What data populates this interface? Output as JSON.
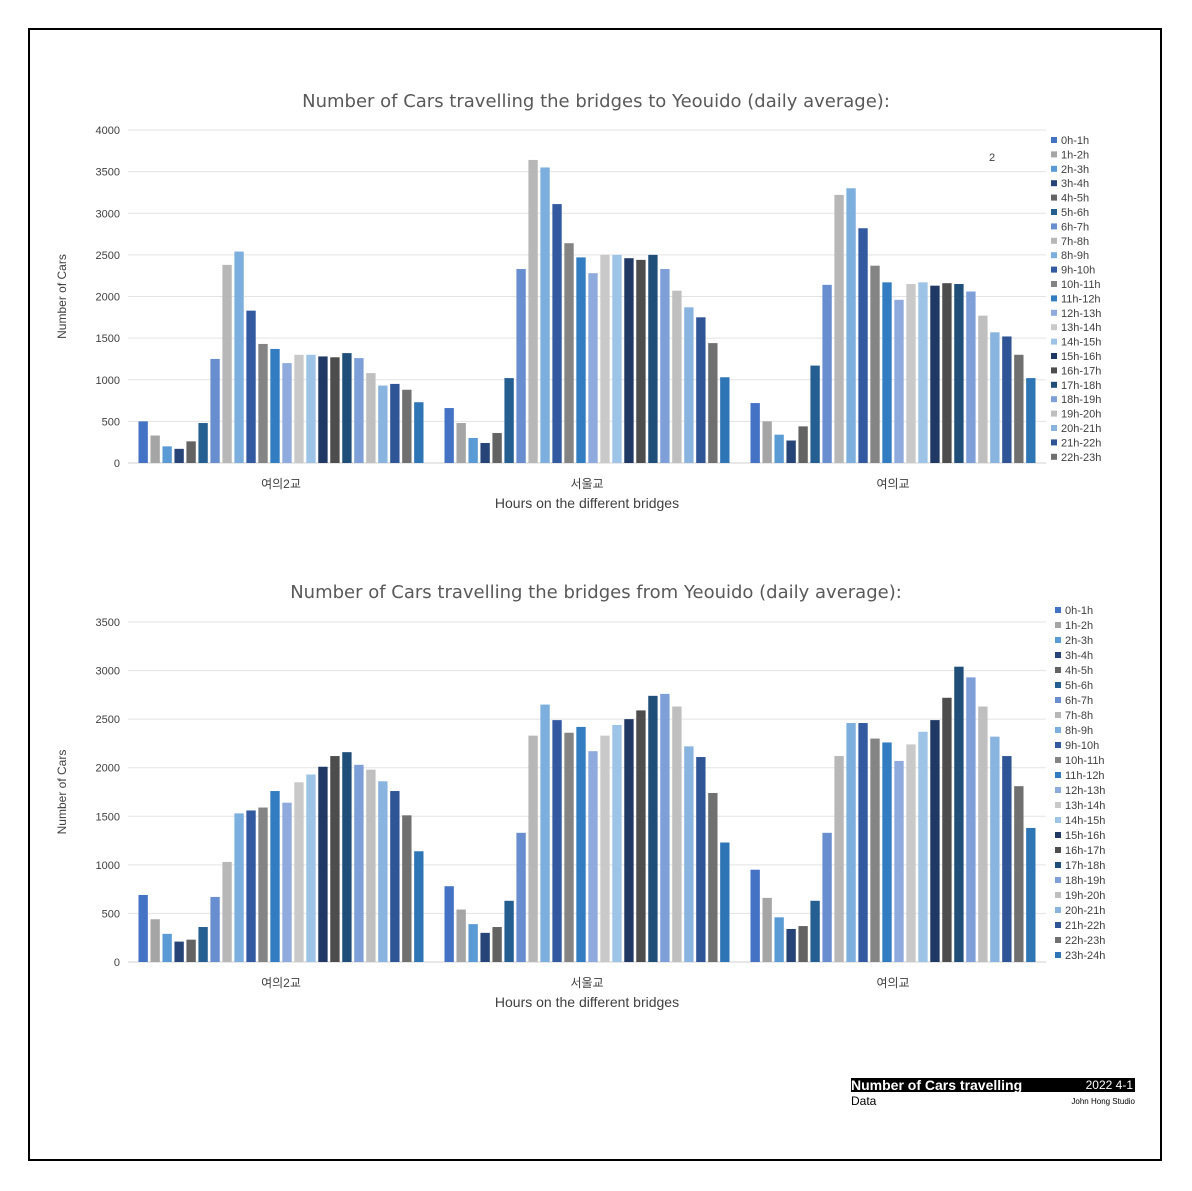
{
  "chart_data": [
    {
      "type": "bar",
      "title": "Number of Cars travelling the bridges to Yeouido (daily average):",
      "xlabel": "Hours on the different bridges",
      "ylabel": "Number of Cars",
      "ylim": [
        0,
        4000
      ],
      "yticks": [
        0,
        500,
        1000,
        1500,
        2000,
        2500,
        3000,
        3500,
        4000
      ],
      "grid": true,
      "legend": "right",
      "annotation": "2",
      "categories": [
        "여의2교",
        "서울교",
        "여의교"
      ],
      "series": [
        {
          "name": "0h-1h",
          "values": [
            500,
            660,
            720
          ]
        },
        {
          "name": "1h-2h",
          "values": [
            330,
            480,
            500
          ]
        },
        {
          "name": "2h-3h",
          "values": [
            200,
            300,
            340
          ]
        },
        {
          "name": "3h-4h",
          "values": [
            170,
            240,
            270
          ]
        },
        {
          "name": "4h-5h",
          "values": [
            260,
            360,
            440
          ]
        },
        {
          "name": "5h-6h",
          "values": [
            480,
            1020,
            1170
          ]
        },
        {
          "name": "6h-7h",
          "values": [
            1250,
            2330,
            2140
          ]
        },
        {
          "name": "7h-8h",
          "values": [
            2380,
            3640,
            3220
          ]
        },
        {
          "name": "8h-9h",
          "values": [
            2540,
            3550,
            3300
          ]
        },
        {
          "name": "9h-10h",
          "values": [
            1830,
            3110,
            2820
          ]
        },
        {
          "name": "10h-11h",
          "values": [
            1430,
            2640,
            2370
          ]
        },
        {
          "name": "11h-12h",
          "values": [
            1370,
            2470,
            2170
          ]
        },
        {
          "name": "12h-13h",
          "values": [
            1200,
            2280,
            1960
          ]
        },
        {
          "name": "13h-14h",
          "values": [
            1300,
            2500,
            2150
          ]
        },
        {
          "name": "14h-15h",
          "values": [
            1300,
            2500,
            2170
          ]
        },
        {
          "name": "15h-16h",
          "values": [
            1280,
            2460,
            2130
          ]
        },
        {
          "name": "16h-17h",
          "values": [
            1270,
            2440,
            2160
          ]
        },
        {
          "name": "17h-18h",
          "values": [
            1320,
            2500,
            2150
          ]
        },
        {
          "name": "18h-19h",
          "values": [
            1260,
            2330,
            2060
          ]
        },
        {
          "name": "19h-20h",
          "values": [
            1080,
            2070,
            1770
          ]
        },
        {
          "name": "20h-21h",
          "values": [
            930,
            1870,
            1570
          ]
        },
        {
          "name": "21h-22h",
          "values": [
            950,
            1750,
            1520
          ]
        },
        {
          "name": "22h-23h",
          "values": [
            880,
            1440,
            1300
          ]
        },
        {
          "name": "",
          "values": [
            730,
            1030,
            1020
          ]
        }
      ]
    },
    {
      "type": "bar",
      "title": "Number of Cars travelling the bridges from Yeouido (daily average):",
      "xlabel": "Hours on the different bridges",
      "ylabel": "Number of Cars",
      "ylim": [
        0,
        3500
      ],
      "yticks": [
        0,
        500,
        1000,
        1500,
        2000,
        2500,
        3000,
        3500
      ],
      "grid": true,
      "legend": "right",
      "categories": [
        "여의2교",
        "서울교",
        "여의교"
      ],
      "series": [
        {
          "name": "0h-1h",
          "values": [
            690,
            780,
            950
          ]
        },
        {
          "name": "1h-2h",
          "values": [
            440,
            540,
            660
          ]
        },
        {
          "name": "2h-3h",
          "values": [
            290,
            390,
            460
          ]
        },
        {
          "name": "3h-4h",
          "values": [
            210,
            300,
            340
          ]
        },
        {
          "name": "4h-5h",
          "values": [
            230,
            360,
            370
          ]
        },
        {
          "name": "5h-6h",
          "values": [
            360,
            630,
            630
          ]
        },
        {
          "name": "6h-7h",
          "values": [
            670,
            1330,
            1330
          ]
        },
        {
          "name": "7h-8h",
          "values": [
            1030,
            2330,
            2120
          ]
        },
        {
          "name": "8h-9h",
          "values": [
            1530,
            2650,
            2460
          ]
        },
        {
          "name": "9h-10h",
          "values": [
            1560,
            2490,
            2460
          ]
        },
        {
          "name": "10h-11h",
          "values": [
            1590,
            2360,
            2300
          ]
        },
        {
          "name": "11h-12h",
          "values": [
            1760,
            2420,
            2260
          ]
        },
        {
          "name": "12h-13h",
          "values": [
            1640,
            2170,
            2070
          ]
        },
        {
          "name": "13h-14h",
          "values": [
            1850,
            2330,
            2240
          ]
        },
        {
          "name": "14h-15h",
          "values": [
            1930,
            2440,
            2370
          ]
        },
        {
          "name": "15h-16h",
          "values": [
            2010,
            2500,
            2490
          ]
        },
        {
          "name": "16h-17h",
          "values": [
            2120,
            2590,
            2720
          ]
        },
        {
          "name": "17h-18h",
          "values": [
            2160,
            2740,
            3040
          ]
        },
        {
          "name": "18h-19h",
          "values": [
            2030,
            2760,
            2930
          ]
        },
        {
          "name": "19h-20h",
          "values": [
            1980,
            2630,
            2630
          ]
        },
        {
          "name": "20h-21h",
          "values": [
            1860,
            2220,
            2320
          ]
        },
        {
          "name": "21h-22h",
          "values": [
            1760,
            2110,
            2120
          ]
        },
        {
          "name": "22h-23h",
          "values": [
            1510,
            1740,
            1810
          ]
        },
        {
          "name": "23h-24h",
          "values": [
            1140,
            1230,
            1380
          ]
        }
      ]
    }
  ],
  "colors": [
    "#4472c4",
    "#a5a5a5",
    "#5b9bd5",
    "#264478",
    "#636363",
    "#255e91",
    "#698ed0",
    "#b7b7b7",
    "#7cafdd",
    "#335aa1",
    "#848484",
    "#327dc2",
    "#8faadc",
    "#c9c9c9",
    "#9dc3e6",
    "#203864",
    "#4d4d4d",
    "#1f4e79",
    "#7f9fd9",
    "#bfbfbf",
    "#8ab4e0",
    "#2f5597",
    "#707070",
    "#2e75b6"
  ],
  "footer": {
    "title": "Number of Cars travelling",
    "date": "2022 4-1",
    "subtitle": "Data",
    "studio": "John Hong Studio"
  }
}
